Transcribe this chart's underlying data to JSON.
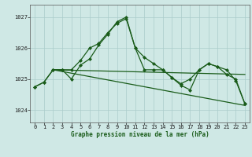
{
  "title": "Graphe pression niveau de la mer (hPa)",
  "background_color": "#cfe8e5",
  "grid_color": "#aaccca",
  "line_color": "#1a5c1a",
  "xlim": [
    -0.5,
    23.5
  ],
  "ylim": [
    1023.6,
    1027.4
  ],
  "yticks": [
    1024,
    1025,
    1026,
    1027
  ],
  "xticks": [
    0,
    1,
    2,
    3,
    4,
    5,
    6,
    7,
    8,
    9,
    10,
    11,
    12,
    13,
    14,
    15,
    16,
    17,
    18,
    19,
    20,
    21,
    22,
    23
  ],
  "line1_x": [
    0,
    1,
    2,
    3,
    4,
    5,
    6,
    7,
    8,
    9,
    10,
    11,
    12,
    13,
    14,
    15,
    16,
    17,
    18,
    19,
    20,
    21,
    22,
    23
  ],
  "line1_y": [
    1024.75,
    1024.9,
    1025.3,
    1025.3,
    1025.0,
    1025.45,
    1025.65,
    1026.1,
    1026.45,
    1026.85,
    1027.0,
    1026.0,
    1025.3,
    1025.3,
    1025.3,
    1025.05,
    1024.8,
    1024.65,
    1025.3,
    1025.5,
    1025.4,
    1025.15,
    1025.0,
    1024.2
  ],
  "line2_x": [
    0,
    1,
    2,
    3,
    4,
    5,
    6,
    7,
    8,
    9,
    10,
    11,
    12,
    13,
    14,
    15,
    16,
    17,
    18,
    19,
    20,
    21,
    22,
    23
  ],
  "line2_y": [
    1024.75,
    1024.9,
    1025.3,
    1025.3,
    1025.3,
    1025.6,
    1026.0,
    1026.15,
    1026.5,
    1026.8,
    1026.95,
    1026.0,
    1025.7,
    1025.5,
    1025.3,
    1025.05,
    1024.85,
    1025.0,
    1025.3,
    1025.5,
    1025.4,
    1025.3,
    1024.95,
    1024.2
  ],
  "line3_x": [
    2,
    23
  ],
  "line3_y": [
    1025.3,
    1025.15
  ],
  "line4_x": [
    2,
    23
  ],
  "line4_y": [
    1025.3,
    1024.15
  ]
}
